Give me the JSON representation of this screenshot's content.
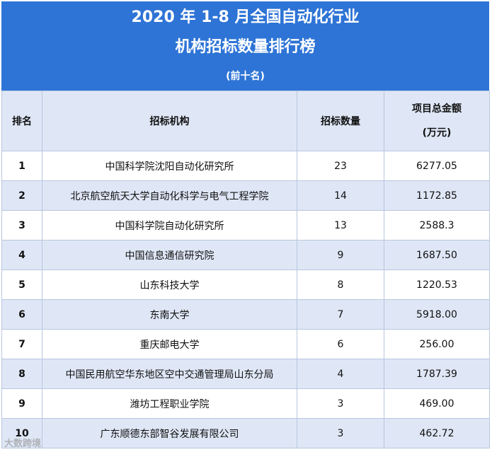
{
  "header": {
    "title_line1": "2020 年 1-8 月全国自动化行业",
    "title_line2": "机构招标数量排行榜",
    "subtitle": "(前十名)"
  },
  "chart_data": {
    "type": "table",
    "columns": [
      "排名",
      "招标机构",
      "招标数量",
      "项目总金额",
      "(万元)"
    ],
    "rows": [
      {
        "rank": "1",
        "org": "中国科学院沈阳自动化研究所",
        "count": "23",
        "amount": "6277.05"
      },
      {
        "rank": "2",
        "org": "北京航空航天大学自动化科学与电气工程学院",
        "count": "14",
        "amount": "1172.85"
      },
      {
        "rank": "3",
        "org": "中国科学院自动化研究所",
        "count": "13",
        "amount": "2588.3"
      },
      {
        "rank": "4",
        "org": "中国信息通信研究院",
        "count": "9",
        "amount": "1687.50"
      },
      {
        "rank": "5",
        "org": "山东科技大学",
        "count": "8",
        "amount": "1220.53"
      },
      {
        "rank": "6",
        "org": "东南大学",
        "count": "7",
        "amount": "5918.00"
      },
      {
        "rank": "7",
        "org": "重庆邮电大学",
        "count": "6",
        "amount": "256.00"
      },
      {
        "rank": "8",
        "org": "中国民用航空华东地区空中交通管理局山东分局",
        "count": "4",
        "amount": "1787.39"
      },
      {
        "rank": "9",
        "org": "潍坊工程职业学院",
        "count": "3",
        "amount": "469.00"
      },
      {
        "rank": "10",
        "org": "广东顺德东部智谷发展有限公司",
        "count": "3",
        "amount": "462.72"
      }
    ]
  },
  "watermark": "大数跨境"
}
